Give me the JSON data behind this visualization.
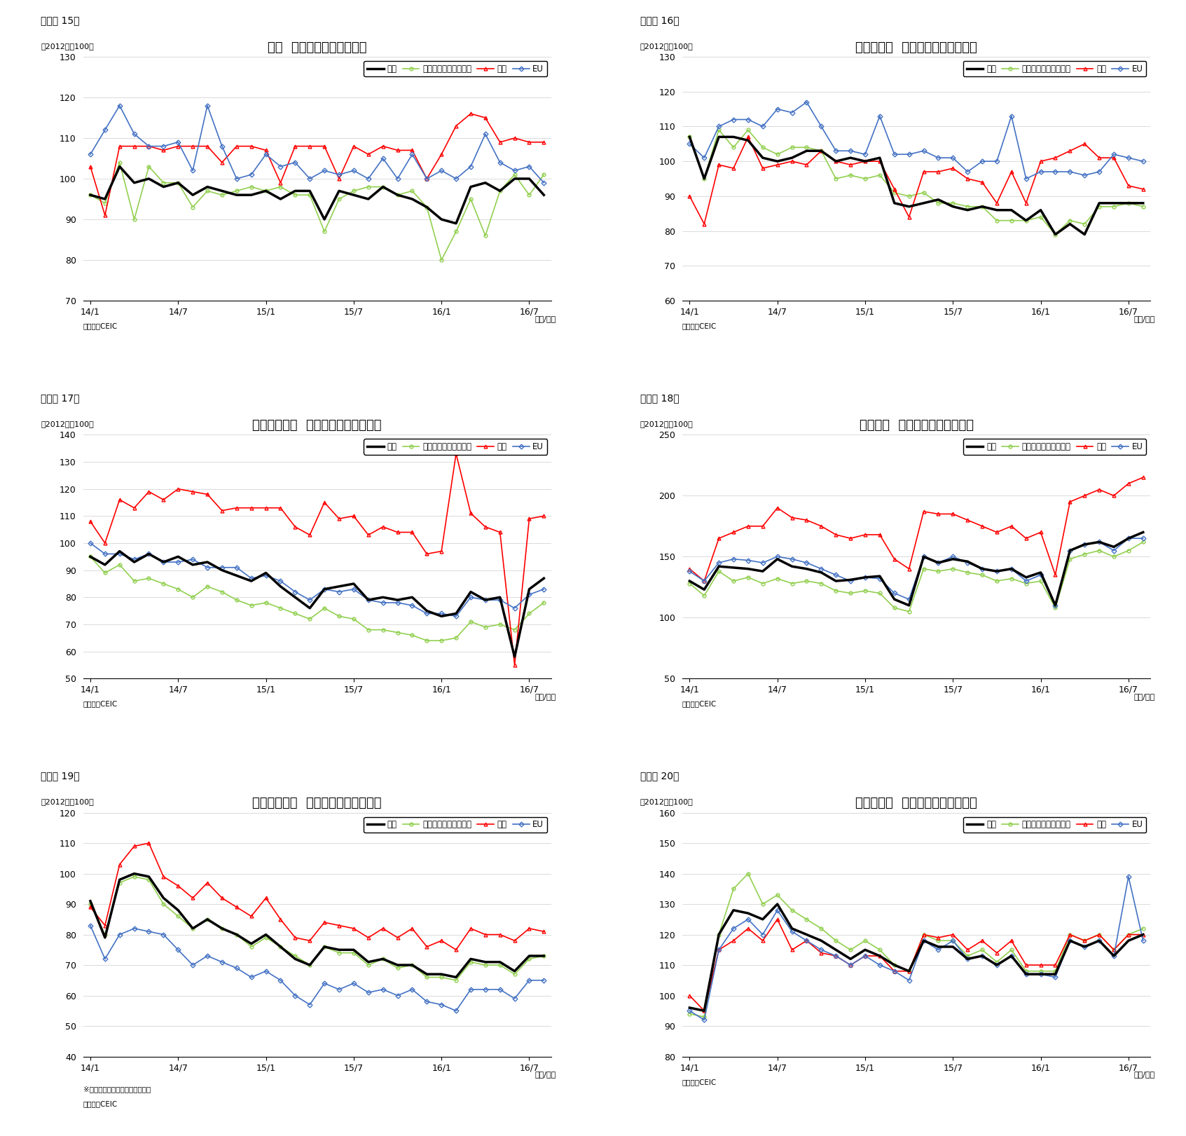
{
  "charts": [
    {
      "fig_label": "（図表 15）",
      "title": "タイ  仕向け地別の輸出動向",
      "ylim": [
        70,
        130
      ],
      "yticks": [
        70,
        80,
        90,
        100,
        110,
        120,
        130
      ],
      "source": "（資料）CEIC",
      "note": "",
      "export": [
        96,
        95,
        103,
        99,
        100,
        98,
        99,
        96,
        98,
        97,
        96,
        96,
        97,
        95,
        97,
        97,
        90,
        97,
        96,
        95,
        98,
        96,
        95,
        93,
        90,
        89,
        98,
        99,
        97,
        100,
        100,
        96
      ],
      "east_asia": [
        96,
        94,
        104,
        90,
        103,
        99,
        99,
        93,
        97,
        96,
        97,
        98,
        97,
        98,
        96,
        96,
        87,
        95,
        97,
        98,
        98,
        96,
        97,
        93,
        80,
        87,
        95,
        86,
        97,
        101,
        96,
        101
      ],
      "north_am": [
        103,
        91,
        108,
        108,
        108,
        107,
        108,
        108,
        108,
        104,
        108,
        108,
        107,
        99,
        108,
        108,
        108,
        100,
        108,
        106,
        108,
        107,
        107,
        100,
        106,
        113,
        116,
        115,
        109,
        110,
        109,
        109
      ],
      "eu": [
        106,
        112,
        118,
        111,
        108,
        108,
        109,
        102,
        118,
        108,
        100,
        101,
        106,
        103,
        104,
        100,
        102,
        101,
        102,
        100,
        105,
        100,
        106,
        100,
        102,
        100,
        103,
        111,
        104,
        102,
        103,
        99
      ]
    },
    {
      "fig_label": "（図表 16）",
      "title": "マレーシア  仕向け地別の輸出動向",
      "ylim": [
        60,
        130
      ],
      "yticks": [
        60,
        70,
        80,
        90,
        100,
        110,
        120,
        130
      ],
      "source": "（資料）CEIC",
      "note": "",
      "export": [
        107,
        95,
        107,
        107,
        106,
        101,
        100,
        101,
        103,
        103,
        100,
        101,
        100,
        101,
        88,
        87,
        88,
        89,
        87,
        86,
        87,
        86,
        86,
        83,
        86,
        79,
        82,
        79,
        88,
        88,
        88,
        88
      ],
      "east_asia": [
        107,
        95,
        109,
        104,
        109,
        104,
        102,
        104,
        104,
        103,
        95,
        96,
        95,
        96,
        91,
        90,
        91,
        88,
        88,
        87,
        87,
        83,
        83,
        83,
        84,
        79,
        83,
        82,
        87,
        87,
        88,
        87
      ],
      "north_am": [
        90,
        82,
        99,
        98,
        107,
        98,
        99,
        100,
        99,
        103,
        100,
        99,
        100,
        100,
        92,
        84,
        97,
        97,
        98,
        95,
        94,
        88,
        97,
        88,
        100,
        101,
        103,
        105,
        101,
        101,
        93,
        92
      ],
      "eu": [
        105,
        101,
        110,
        112,
        112,
        110,
        115,
        114,
        117,
        110,
        103,
        103,
        102,
        113,
        102,
        102,
        103,
        101,
        101,
        97,
        100,
        100,
        113,
        95,
        97,
        97,
        97,
        96,
        97,
        102,
        101,
        100
      ]
    },
    {
      "fig_label": "（図表 17）",
      "title": "インドネシア  仕向け地別の輸出動向",
      "ylim": [
        50,
        140
      ],
      "yticks": [
        50,
        60,
        70,
        80,
        90,
        100,
        110,
        120,
        130,
        140
      ],
      "source": "（資料）CEIC",
      "note": "",
      "export": [
        95,
        92,
        97,
        93,
        96,
        93,
        95,
        92,
        93,
        90,
        88,
        86,
        89,
        84,
        80,
        76,
        83,
        84,
        85,
        79,
        80,
        79,
        80,
        75,
        73,
        74,
        82,
        79,
        80,
        58,
        83,
        87
      ],
      "east_asia": [
        95,
        89,
        92,
        86,
        87,
        85,
        83,
        80,
        84,
        82,
        79,
        77,
        78,
        76,
        74,
        72,
        76,
        73,
        72,
        68,
        68,
        67,
        66,
        64,
        64,
        65,
        71,
        69,
        70,
        68,
        74,
        78
      ],
      "north_am": [
        108,
        100,
        116,
        113,
        119,
        116,
        120,
        119,
        118,
        112,
        113,
        113,
        113,
        113,
        106,
        103,
        115,
        109,
        110,
        103,
        106,
        104,
        104,
        96,
        97,
        133,
        111,
        106,
        104,
        55,
        109,
        110
      ],
      "eu": [
        100,
        96,
        96,
        94,
        96,
        93,
        93,
        94,
        91,
        91,
        91,
        87,
        88,
        86,
        82,
        79,
        83,
        82,
        83,
        79,
        78,
        78,
        77,
        74,
        74,
        73,
        80,
        79,
        79,
        76,
        81,
        83
      ]
    },
    {
      "fig_label": "（図表 18）",
      "title": "ベトナム  仕向け地別の輸出動向",
      "ylim": [
        50,
        250
      ],
      "yticks": [
        50,
        100,
        150,
        200,
        250
      ],
      "source": "（資料）CEIC",
      "note": "",
      "export": [
        130,
        123,
        142,
        141,
        140,
        138,
        148,
        142,
        140,
        137,
        130,
        131,
        133,
        134,
        115,
        110,
        150,
        145,
        148,
        146,
        140,
        138,
        140,
        133,
        137,
        110,
        155,
        160,
        162,
        158,
        165,
        170
      ],
      "east_asia": [
        128,
        118,
        138,
        130,
        133,
        128,
        132,
        128,
        130,
        128,
        122,
        120,
        122,
        120,
        108,
        105,
        140,
        138,
        140,
        137,
        135,
        130,
        132,
        128,
        130,
        108,
        148,
        152,
        155,
        150,
        155,
        162
      ],
      "north_am": [
        140,
        130,
        165,
        170,
        175,
        175,
        190,
        182,
        180,
        175,
        168,
        165,
        168,
        168,
        148,
        140,
        187,
        185,
        185,
        180,
        175,
        170,
        175,
        165,
        170,
        135,
        195,
        200,
        205,
        200,
        210,
        215
      ],
      "eu": [
        138,
        130,
        145,
        148,
        147,
        145,
        150,
        148,
        145,
        140,
        135,
        130,
        133,
        132,
        120,
        115,
        150,
        145,
        150,
        145,
        140,
        138,
        140,
        130,
        135,
        110,
        155,
        160,
        162,
        155,
        165,
        165
      ]
    },
    {
      "fig_label": "（図表 19）",
      "title": "シンガポール  仕向け地別の輸出動向",
      "ylim": [
        40,
        120
      ],
      "yticks": [
        40,
        50,
        60,
        70,
        80,
        90,
        100,
        110,
        120
      ],
      "source_line1": "※輸出額は再輸出を除いた数値。",
      "source_line2": "（資料）CEIC",
      "note": "※輸出額は再輸出を除いた数値。",
      "export": [
        91,
        79,
        98,
        100,
        99,
        92,
        88,
        82,
        85,
        82,
        80,
        77,
        80,
        76,
        72,
        70,
        76,
        75,
        75,
        71,
        72,
        70,
        70,
        67,
        67,
        66,
        72,
        71,
        71,
        68,
        73,
        73
      ],
      "east_asia": [
        90,
        80,
        97,
        99,
        98,
        90,
        86,
        82,
        85,
        82,
        80,
        76,
        79,
        76,
        73,
        70,
        76,
        74,
        74,
        70,
        72,
        69,
        70,
        66,
        66,
        65,
        71,
        70,
        70,
        67,
        72,
        73
      ],
      "north_am": [
        89,
        83,
        103,
        109,
        110,
        99,
        96,
        92,
        97,
        92,
        89,
        86,
        92,
        85,
        79,
        78,
        84,
        83,
        82,
        79,
        82,
        79,
        82,
        76,
        78,
        75,
        82,
        80,
        80,
        78,
        82,
        81
      ],
      "eu": [
        83,
        72,
        80,
        82,
        81,
        80,
        75,
        70,
        73,
        71,
        69,
        66,
        68,
        65,
        60,
        57,
        64,
        62,
        64,
        61,
        62,
        60,
        62,
        58,
        57,
        55,
        62,
        62,
        62,
        59,
        65,
        65
      ]
    },
    {
      "fig_label": "（図表 20）",
      "title": "フィリピン  仕向け地別の輸出動向",
      "ylim": [
        80,
        160
      ],
      "yticks": [
        80,
        90,
        100,
        110,
        120,
        130,
        140,
        150,
        160
      ],
      "source": "（資料）CEIC",
      "note": "",
      "export": [
        96,
        95,
        120,
        128,
        127,
        125,
        130,
        122,
        120,
        118,
        115,
        112,
        115,
        113,
        110,
        108,
        118,
        116,
        116,
        112,
        113,
        110,
        113,
        107,
        107,
        107,
        118,
        116,
        118,
        113,
        118,
        120
      ],
      "east_asia": [
        94,
        93,
        120,
        135,
        140,
        130,
        133,
        128,
        125,
        122,
        118,
        115,
        118,
        115,
        110,
        108,
        120,
        118,
        118,
        113,
        115,
        111,
        115,
        108,
        108,
        108,
        120,
        118,
        120,
        115,
        120,
        122
      ],
      "north_am": [
        100,
        95,
        115,
        118,
        122,
        118,
        125,
        115,
        118,
        114,
        113,
        110,
        113,
        113,
        108,
        108,
        120,
        119,
        120,
        115,
        118,
        114,
        118,
        110,
        110,
        110,
        120,
        118,
        120,
        115,
        120,
        120
      ],
      "eu": [
        95,
        92,
        115,
        122,
        125,
        120,
        128,
        121,
        118,
        115,
        113,
        110,
        113,
        110,
        108,
        105,
        118,
        115,
        118,
        112,
        113,
        110,
        113,
        107,
        107,
        106,
        118,
        116,
        118,
        113,
        139,
        118
      ]
    }
  ],
  "x_ticks_labels": [
    "14/1",
    "14/7",
    "15/1",
    "15/7",
    "16/1",
    "16/7"
  ],
  "x_ticks_pos": [
    0,
    6,
    12,
    18,
    24,
    30
  ],
  "colors": {
    "export": "#000000",
    "east_asia": "#92d050",
    "north_am": "#ff0000",
    "eu": "#4472c4"
  },
  "legend_labels": [
    "輸出",
    "東アジア・東南アジア",
    "北米",
    "EU"
  ],
  "ylabel": "（2012年＝100）",
  "xlabel": "（年/月）"
}
